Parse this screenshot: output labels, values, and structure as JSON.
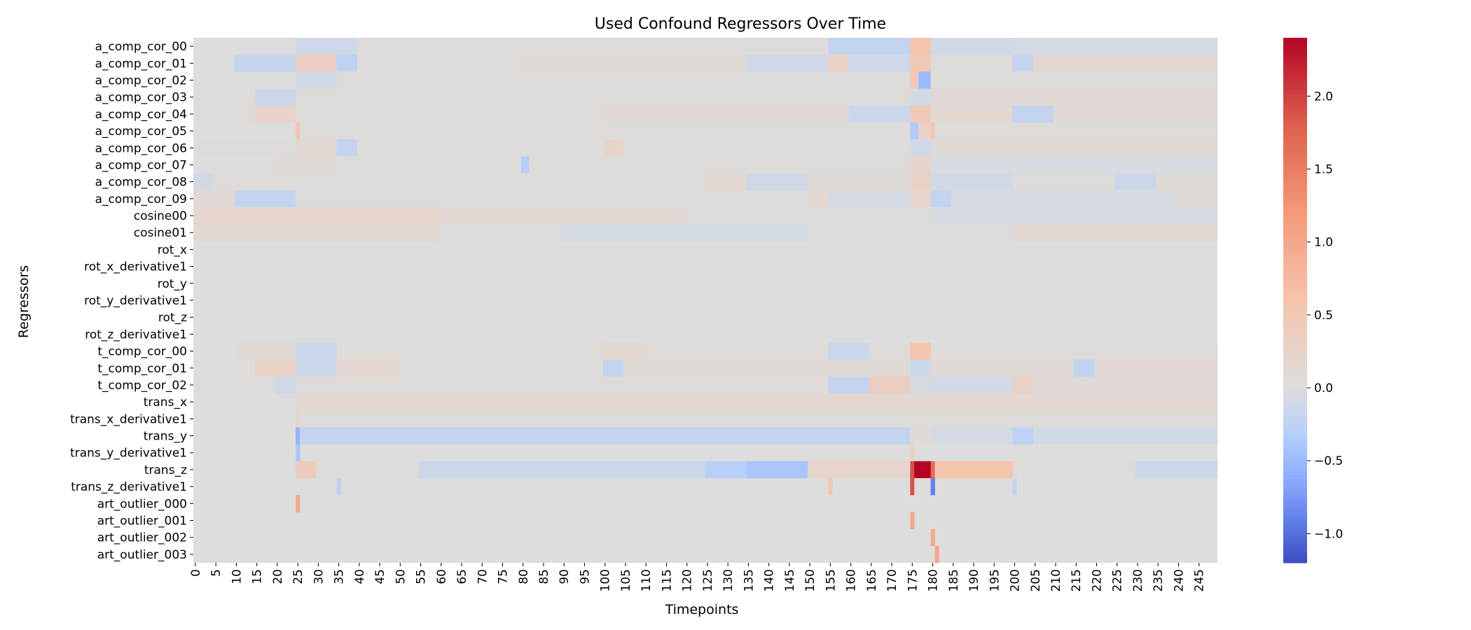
{
  "chart_data": {
    "type": "heatmap",
    "title": "Used Confound Regressors Over Time",
    "xlabel": "Timepoints",
    "ylabel": "Regressors",
    "n_timepoints": 250,
    "x_tick_labels": [
      "0",
      "5",
      "10",
      "15",
      "20",
      "25",
      "30",
      "35",
      "40",
      "45",
      "50",
      "55",
      "60",
      "65",
      "70",
      "75",
      "80",
      "85",
      "90",
      "95",
      "100",
      "105",
      "110",
      "115",
      "120",
      "125",
      "130",
      "135",
      "140",
      "145",
      "150",
      "155",
      "160",
      "165",
      "170",
      "175",
      "180",
      "185",
      "190",
      "195",
      "200",
      "205",
      "210",
      "215",
      "220",
      "225",
      "230",
      "235",
      "240",
      "245"
    ],
    "regressors": [
      "a_comp_cor_00",
      "a_comp_cor_01",
      "a_comp_cor_02",
      "a_comp_cor_03",
      "a_comp_cor_04",
      "a_comp_cor_05",
      "a_comp_cor_06",
      "a_comp_cor_07",
      "a_comp_cor_08",
      "a_comp_cor_09",
      "cosine00",
      "cosine01",
      "rot_x",
      "rot_x_derivative1",
      "rot_y",
      "rot_y_derivative1",
      "rot_z",
      "rot_z_derivative1",
      "t_comp_cor_00",
      "t_comp_cor_01",
      "t_comp_cor_02",
      "trans_x",
      "trans_x_derivative1",
      "trans_y",
      "trans_y_derivative1",
      "trans_z",
      "trans_z_derivative1",
      "art_outlier_000",
      "art_outlier_001",
      "art_outlier_002",
      "art_outlier_003"
    ],
    "colormap": "coolwarm",
    "vmin": -1.2,
    "vmax": 2.4,
    "colorbar_ticks": [
      2.0,
      1.5,
      1.0,
      0.5,
      0.0,
      -0.5,
      -1.0
    ],
    "colorbar_tick_labels": [
      "2.0",
      "1.5",
      "1.0",
      "0.5",
      "0.0",
      "−0.5",
      "−1.0"
    ],
    "segments": {
      "a_comp_cor_00": [
        [
          0,
          25,
          0.0
        ],
        [
          25,
          40,
          -0.12
        ],
        [
          40,
          155,
          0.02
        ],
        [
          155,
          175,
          -0.2
        ],
        [
          175,
          180,
          0.6
        ],
        [
          180,
          200,
          -0.1
        ],
        [
          200,
          250,
          -0.08
        ]
      ],
      "a_comp_cor_01": [
        [
          0,
          10,
          0.0
        ],
        [
          10,
          25,
          -0.18
        ],
        [
          25,
          35,
          0.35
        ],
        [
          35,
          40,
          -0.25
        ],
        [
          40,
          80,
          0.05
        ],
        [
          80,
          135,
          0.08
        ],
        [
          135,
          155,
          -0.12
        ],
        [
          155,
          160,
          0.3
        ],
        [
          160,
          175,
          -0.12
        ],
        [
          175,
          180,
          0.5
        ],
        [
          180,
          200,
          0.05
        ],
        [
          200,
          205,
          -0.2
        ],
        [
          205,
          250,
          0.15
        ]
      ],
      "a_comp_cor_02": [
        [
          0,
          25,
          0.0
        ],
        [
          25,
          35,
          -0.1
        ],
        [
          35,
          175,
          0.02
        ],
        [
          175,
          177,
          0.5
        ],
        [
          177,
          180,
          -0.5
        ],
        [
          180,
          250,
          0.05
        ]
      ],
      "a_comp_cor_03": [
        [
          0,
          15,
          0.05
        ],
        [
          15,
          25,
          -0.15
        ],
        [
          25,
          175,
          0.05
        ],
        [
          175,
          180,
          -0.1
        ],
        [
          180,
          250,
          0.1
        ]
      ],
      "a_comp_cor_04": [
        [
          0,
          15,
          0.05
        ],
        [
          15,
          25,
          0.25
        ],
        [
          25,
          100,
          0.02
        ],
        [
          100,
          160,
          0.1
        ],
        [
          160,
          175,
          -0.15
        ],
        [
          175,
          180,
          0.45
        ],
        [
          180,
          200,
          0.15
        ],
        [
          200,
          210,
          -0.2
        ],
        [
          210,
          250,
          0.1
        ]
      ],
      "a_comp_cor_05": [
        [
          0,
          25,
          0.0
        ],
        [
          25,
          26,
          0.6
        ],
        [
          26,
          175,
          0.03
        ],
        [
          175,
          177,
          -0.35
        ],
        [
          177,
          180,
          0.3
        ],
        [
          180,
          181,
          0.55
        ],
        [
          181,
          250,
          0.03
        ]
      ],
      "a_comp_cor_06": [
        [
          0,
          25,
          0.03
        ],
        [
          25,
          35,
          0.12
        ],
        [
          35,
          40,
          -0.2
        ],
        [
          40,
          100,
          0.03
        ],
        [
          100,
          105,
          0.25
        ],
        [
          105,
          175,
          0.02
        ],
        [
          175,
          180,
          -0.12
        ],
        [
          180,
          250,
          0.08
        ]
      ],
      "a_comp_cor_07": [
        [
          0,
          20,
          0.0
        ],
        [
          20,
          35,
          0.1
        ],
        [
          35,
          80,
          0.02
        ],
        [
          80,
          82,
          -0.3
        ],
        [
          82,
          175,
          0.03
        ],
        [
          175,
          180,
          0.25
        ],
        [
          180,
          250,
          -0.05
        ]
      ],
      "a_comp_cor_08": [
        [
          0,
          5,
          -0.1
        ],
        [
          5,
          25,
          0.05
        ],
        [
          25,
          125,
          0.02
        ],
        [
          125,
          135,
          0.15
        ],
        [
          135,
          150,
          -0.12
        ],
        [
          150,
          175,
          0.08
        ],
        [
          175,
          180,
          0.3
        ],
        [
          180,
          200,
          -0.1
        ],
        [
          200,
          225,
          0.05
        ],
        [
          225,
          235,
          -0.15
        ],
        [
          235,
          250,
          0.08
        ]
      ],
      "a_comp_cor_09": [
        [
          0,
          10,
          0.1
        ],
        [
          10,
          25,
          -0.2
        ],
        [
          25,
          150,
          0.03
        ],
        [
          150,
          155,
          0.15
        ],
        [
          155,
          175,
          -0.08
        ],
        [
          175,
          180,
          0.2
        ],
        [
          180,
          185,
          -0.2
        ],
        [
          185,
          240,
          -0.05
        ],
        [
          240,
          250,
          0.1
        ]
      ],
      "cosine00": [
        [
          0,
          60,
          0.2
        ],
        [
          60,
          120,
          0.12
        ],
        [
          120,
          180,
          0.05
        ],
        [
          180,
          250,
          -0.05
        ]
      ],
      "cosine01": [
        [
          0,
          60,
          0.15
        ],
        [
          60,
          90,
          0.02
        ],
        [
          90,
          150,
          -0.08
        ],
        [
          150,
          200,
          -0.02
        ],
        [
          200,
          250,
          0.15
        ]
      ],
      "rot_x": [
        [
          0,
          250,
          0.0
        ]
      ],
      "rot_x_derivative1": [
        [
          0,
          250,
          0.0
        ]
      ],
      "rot_y": [
        [
          0,
          250,
          0.0
        ]
      ],
      "rot_y_derivative1": [
        [
          0,
          250,
          0.0
        ]
      ],
      "rot_z": [
        [
          0,
          250,
          0.0
        ]
      ],
      "rot_z_derivative1": [
        [
          0,
          250,
          0.0
        ]
      ],
      "t_comp_cor_00": [
        [
          0,
          10,
          0.0
        ],
        [
          10,
          25,
          0.08
        ],
        [
          25,
          35,
          -0.15
        ],
        [
          35,
          100,
          0.05
        ],
        [
          100,
          110,
          0.15
        ],
        [
          110,
          155,
          0.05
        ],
        [
          155,
          165,
          -0.15
        ],
        [
          165,
          175,
          0.05
        ],
        [
          175,
          180,
          0.6
        ],
        [
          180,
          250,
          0.05
        ]
      ],
      "t_comp_cor_01": [
        [
          0,
          15,
          0.05
        ],
        [
          15,
          25,
          0.3
        ],
        [
          25,
          35,
          -0.15
        ],
        [
          35,
          50,
          0.15
        ],
        [
          50,
          100,
          0.05
        ],
        [
          100,
          105,
          -0.2
        ],
        [
          105,
          175,
          0.08
        ],
        [
          175,
          180,
          -0.15
        ],
        [
          180,
          215,
          0.1
        ],
        [
          215,
          220,
          -0.25
        ],
        [
          220,
          250,
          0.12
        ]
      ],
      "t_comp_cor_02": [
        [
          0,
          20,
          0.02
        ],
        [
          20,
          25,
          -0.12
        ],
        [
          25,
          155,
          0.05
        ],
        [
          155,
          165,
          -0.2
        ],
        [
          165,
          175,
          0.35
        ],
        [
          175,
          180,
          -0.05
        ],
        [
          180,
          200,
          -0.1
        ],
        [
          200,
          205,
          0.3
        ],
        [
          205,
          250,
          0.1
        ]
      ],
      "trans_x": [
        [
          0,
          25,
          0.0
        ],
        [
          25,
          250,
          0.15
        ]
      ],
      "trans_x_derivative1": [
        [
          0,
          25,
          0.0
        ],
        [
          25,
          26,
          0.25
        ],
        [
          26,
          250,
          0.02
        ]
      ],
      "trans_y": [
        [
          0,
          25,
          0.0
        ],
        [
          25,
          26,
          -0.55
        ],
        [
          26,
          175,
          -0.2
        ],
        [
          175,
          180,
          0.1
        ],
        [
          180,
          200,
          -0.08
        ],
        [
          200,
          205,
          -0.25
        ],
        [
          205,
          250,
          -0.1
        ]
      ],
      "trans_y_derivative1": [
        [
          0,
          25,
          0.0
        ],
        [
          25,
          26,
          -0.4
        ],
        [
          26,
          175,
          0.0
        ],
        [
          175,
          176,
          0.3
        ],
        [
          176,
          250,
          0.0
        ]
      ],
      "trans_z": [
        [
          0,
          25,
          0.0
        ],
        [
          25,
          30,
          0.4
        ],
        [
          30,
          55,
          0.05
        ],
        [
          55,
          125,
          -0.15
        ],
        [
          125,
          135,
          -0.3
        ],
        [
          135,
          150,
          -0.4
        ],
        [
          150,
          175,
          0.2
        ],
        [
          175,
          176,
          1.9
        ],
        [
          176,
          180,
          2.4
        ],
        [
          180,
          181,
          1.7
        ],
        [
          181,
          200,
          0.6
        ],
        [
          200,
          230,
          0.05
        ],
        [
          230,
          250,
          -0.15
        ]
      ],
      "trans_z_derivative1": [
        [
          0,
          35,
          0.0
        ],
        [
          35,
          36,
          -0.25
        ],
        [
          36,
          155,
          0.0
        ],
        [
          155,
          156,
          0.55
        ],
        [
          156,
          175,
          0.0
        ],
        [
          175,
          176,
          1.9
        ],
        [
          176,
          180,
          0.05
        ],
        [
          180,
          181,
          -0.9
        ],
        [
          181,
          200,
          0.0
        ],
        [
          200,
          201,
          -0.2
        ],
        [
          201,
          250,
          0.0
        ]
      ],
      "art_outlier_000": [
        [
          0,
          25,
          0.0
        ],
        [
          25,
          26,
          1.0
        ],
        [
          26,
          250,
          0.0
        ]
      ],
      "art_outlier_001": [
        [
          0,
          175,
          0.0
        ],
        [
          175,
          176,
          1.0
        ],
        [
          176,
          250,
          0.0
        ]
      ],
      "art_outlier_002": [
        [
          0,
          180,
          0.0
        ],
        [
          180,
          181,
          1.0
        ],
        [
          181,
          250,
          0.0
        ]
      ],
      "art_outlier_003": [
        [
          0,
          181,
          0.0
        ],
        [
          181,
          182,
          1.0
        ],
        [
          182,
          250,
          0.0
        ]
      ]
    }
  }
}
